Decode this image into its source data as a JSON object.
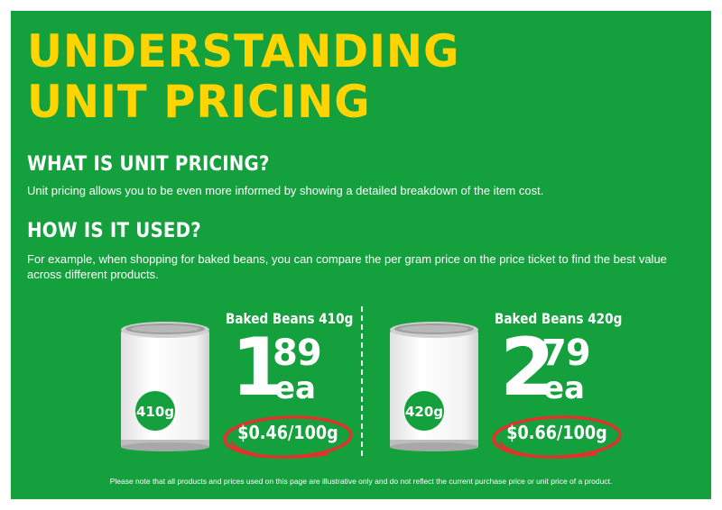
{
  "title": {
    "line1": "UNDERSTANDING",
    "line2": "UNIT PRICING"
  },
  "sections": [
    {
      "heading": "WHAT IS UNIT PRICING?",
      "body": "Unit pricing allows you to be even more informed by showing a detailed breakdown of the item cost."
    },
    {
      "heading": "HOW IS IT USED?",
      "body": "For example, when shopping for baked beans, you can compare the per gram price on the price ticket to find the best value across different products."
    }
  ],
  "products": [
    {
      "name": "Baked Beans 410g",
      "can_label": "410g",
      "price_dollars": "1",
      "price_cents": "89",
      "price_unit": "ea",
      "unit_price": "$0.46/100g"
    },
    {
      "name": "Baked Beans 420g",
      "can_label": "420g",
      "price_dollars": "2",
      "price_cents": "79",
      "price_unit": "ea",
      "unit_price": "$0.66/100g"
    }
  ],
  "disclaimer": "Please note that all products and prices used on this page are illustrative only and do not reflect the current purchase price or unit price of a product.",
  "colors": {
    "background": "#14a03c",
    "title": "#ffd400",
    "ring": "#e0332c",
    "can_badge": "#14a03c"
  }
}
